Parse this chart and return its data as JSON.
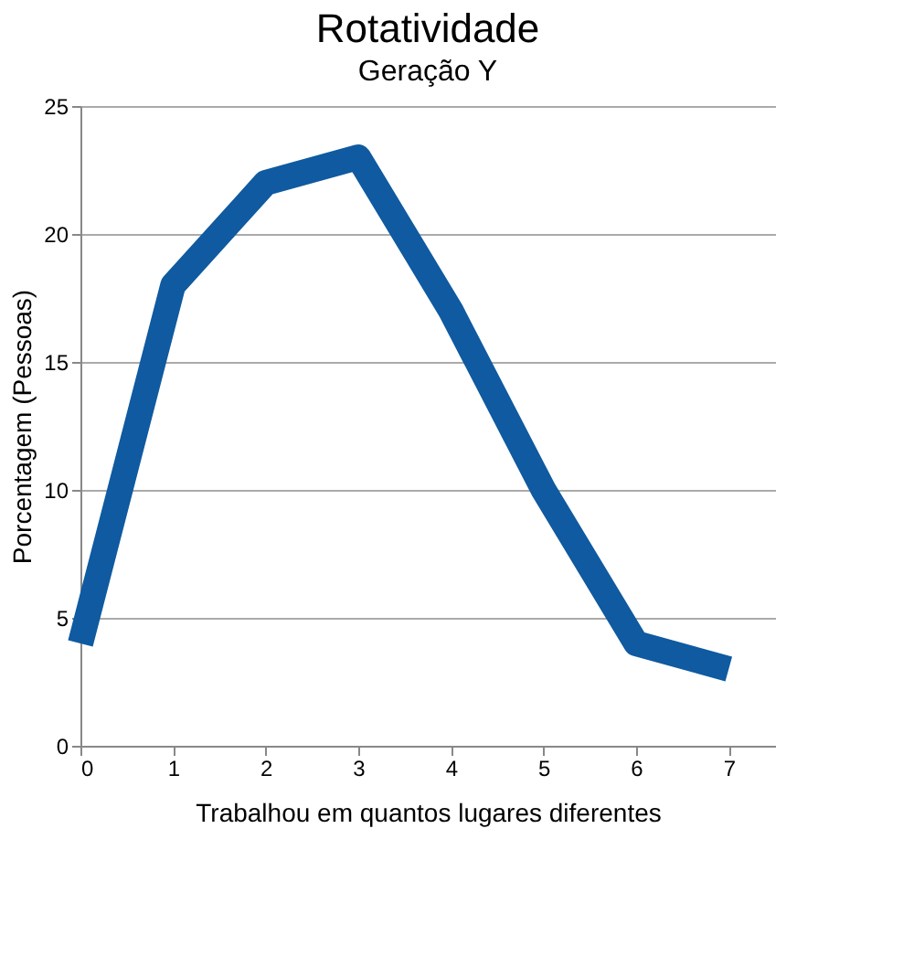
{
  "chart_data": {
    "type": "line",
    "title": "Rotatividade",
    "subtitle": "Geração Y",
    "xlabel": "Trabalhou em quantos lugares diferentes",
    "ylabel": "Porcentagem  (Pessoas)",
    "x": [
      0,
      1,
      2,
      3,
      4,
      5,
      6,
      7
    ],
    "series": [
      {
        "color": "#0f5aa0",
        "values": [
          4,
          18,
          22,
          23,
          17,
          10,
          4,
          3
        ]
      }
    ],
    "xlim": [
      0,
      7.5
    ],
    "xticks": [
      0,
      1,
      2,
      3,
      4,
      5,
      6,
      7
    ],
    "ylim": [
      0,
      25
    ],
    "yticks": [
      0,
      5,
      10,
      15,
      20,
      25
    ],
    "grid": "y",
    "marker": "none",
    "line_style": "solid"
  }
}
